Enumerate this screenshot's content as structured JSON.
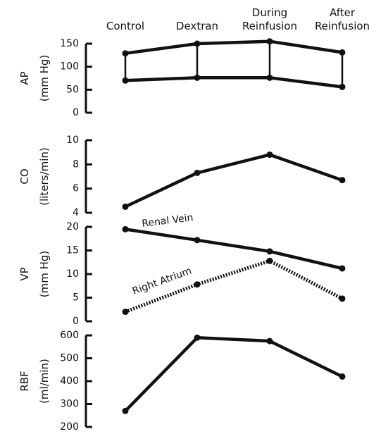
{
  "chart_data": {
    "type": "line",
    "categories": [
      "Control",
      "Dextran",
      "During\nReinfusion",
      "After\nReinfusion"
    ],
    "panels": [
      {
        "id": "ap",
        "ylabel_main": "AP",
        "ylabel_unit": "(mm Hg)",
        "yticks": [
          0,
          50,
          100,
          150
        ],
        "ylim": [
          0,
          150
        ],
        "series": [
          {
            "name": "",
            "values": [
              129,
              150,
              155,
              131
            ],
            "style": "solid"
          },
          {
            "name": "",
            "values": [
              70,
              76,
              76,
              56
            ],
            "style": "solid"
          }
        ],
        "connectors": true
      },
      {
        "id": "co",
        "ylabel_main": "CO",
        "ylabel_unit": "(liters/min)",
        "yticks": [
          4,
          6,
          8,
          10
        ],
        "ylim": [
          4,
          10
        ],
        "series": [
          {
            "name": "",
            "values": [
              4.5,
              7.3,
              8.8,
              6.7
            ],
            "style": "solid"
          }
        ]
      },
      {
        "id": "vp",
        "ylabel_main": "VP",
        "ylabel_unit": "(mm Hg)",
        "yticks": [
          0,
          5,
          10,
          15,
          20
        ],
        "ylim": [
          0,
          20
        ],
        "series": [
          {
            "name": "Renal Vein",
            "values": [
              19.5,
              17.2,
              14.8,
              11.2
            ],
            "style": "solid"
          },
          {
            "name": "Right Atrium",
            "values": [
              2.0,
              7.8,
              12.8,
              4.8
            ],
            "style": "dotted"
          }
        ]
      },
      {
        "id": "rbf",
        "ylabel_main": "RBF",
        "ylabel_unit": "(ml/min)",
        "yticks": [
          200,
          300,
          400,
          500,
          600
        ],
        "ylim": [
          200,
          600
        ],
        "series": [
          {
            "name": "",
            "values": [
              270,
              590,
              575,
              420
            ],
            "style": "solid"
          }
        ]
      }
    ],
    "annotations": {
      "renal_vein": "Renal Vein",
      "right_atrium": "Right Atrium"
    }
  }
}
